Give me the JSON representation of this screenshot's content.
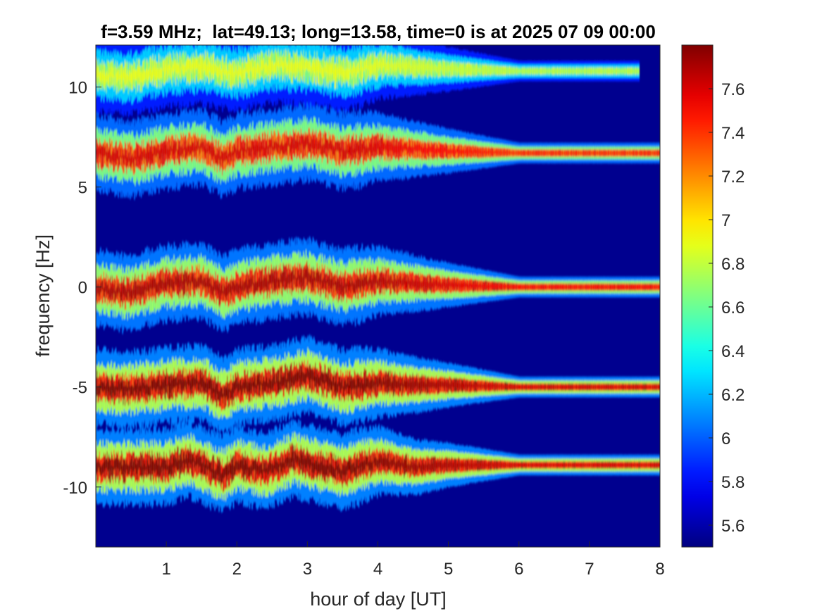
{
  "chart_data": {
    "type": "heatmap",
    "title": "f=3.59 MHz;  lat=49.13; long=13.58, time=0 is at 2025 07 09 00:00",
    "xlabel": "hour of day [UT]",
    "ylabel": "frequency [Hz]",
    "xlim": [
      0,
      8
    ],
    "ylim": [
      -13,
      12.1
    ],
    "x_ticks": [
      1,
      2,
      3,
      4,
      5,
      6,
      7,
      8
    ],
    "x_tick_labels": [
      "1",
      "2",
      "3",
      "4",
      "5",
      "6",
      "7",
      "8"
    ],
    "y_ticks": [
      10,
      5,
      0,
      -5,
      -10
    ],
    "y_tick_labels": [
      "10",
      "5",
      "0",
      "-5",
      "-10"
    ],
    "colorbar": {
      "colormap": "jet",
      "range": [
        5.5,
        7.8
      ],
      "ticks": [
        7.6,
        7.4,
        7.2,
        7,
        6.8,
        6.6,
        6.4,
        6.2,
        6,
        5.8,
        5.6
      ],
      "tick_labels": [
        "7.6",
        "7.4",
        "7.2",
        "7",
        "6.8",
        "6.6",
        "6.4",
        "6.2",
        "6",
        "5.8",
        "5.6"
      ]
    },
    "background_value": 5.5,
    "traces": [
      {
        "center_hz": 10.6,
        "peak_value": 6.9,
        "x": [
          0,
          0.5,
          1,
          1.5,
          2,
          2.5,
          3,
          3.5,
          4,
          5,
          6,
          7,
          7.7
        ],
        "y": [
          10.6,
          10.5,
          10.9,
          11.0,
          10.7,
          11.1,
          11.0,
          10.7,
          11.1,
          10.9,
          10.8,
          10.8,
          10.8
        ]
      },
      {
        "center_hz": 6.7,
        "peak_value": 7.6,
        "x": [
          0,
          0.5,
          1,
          1.5,
          1.8,
          2,
          2.5,
          3,
          3.5,
          4,
          5,
          6,
          7,
          8
        ],
        "y": [
          6.7,
          6.4,
          6.8,
          7.0,
          6.4,
          6.8,
          7.0,
          7.2,
          6.8,
          7.0,
          6.8,
          6.7,
          6.7,
          6.7
        ]
      },
      {
        "center_hz": 0.0,
        "peak_value": 7.7,
        "x": [
          0,
          0.4,
          1,
          1.5,
          1.8,
          2,
          2.5,
          3,
          3.5,
          4,
          5,
          6,
          7,
          8
        ],
        "y": [
          0.0,
          -0.3,
          0.2,
          0.3,
          -0.3,
          0.0,
          0.3,
          0.5,
          0.0,
          0.3,
          0.1,
          0.0,
          0.0,
          0.0
        ]
      },
      {
        "center_hz": -5.0,
        "peak_value": 7.8,
        "x": [
          0,
          0.5,
          1,
          1.5,
          1.8,
          2,
          2.5,
          3,
          3.5,
          4,
          4.5,
          5,
          6,
          7,
          8
        ],
        "y": [
          -5.0,
          -5.1,
          -4.9,
          -4.8,
          -5.4,
          -5.0,
          -4.8,
          -4.4,
          -5.0,
          -4.8,
          -4.9,
          -4.9,
          -5.0,
          -5.0,
          -5.0
        ]
      },
      {
        "center_hz": -9.0,
        "peak_value": 7.8,
        "x": [
          0,
          0.5,
          1,
          1.3,
          1.8,
          2,
          2.4,
          2.8,
          3,
          3.5,
          4,
          4.5,
          5,
          6,
          7,
          8
        ],
        "y": [
          -9.0,
          -9.0,
          -9.0,
          -8.6,
          -9.4,
          -8.9,
          -9.2,
          -8.6,
          -8.8,
          -9.2,
          -8.7,
          -9.0,
          -8.9,
          -8.9,
          -8.9,
          -8.9
        ]
      }
    ]
  }
}
